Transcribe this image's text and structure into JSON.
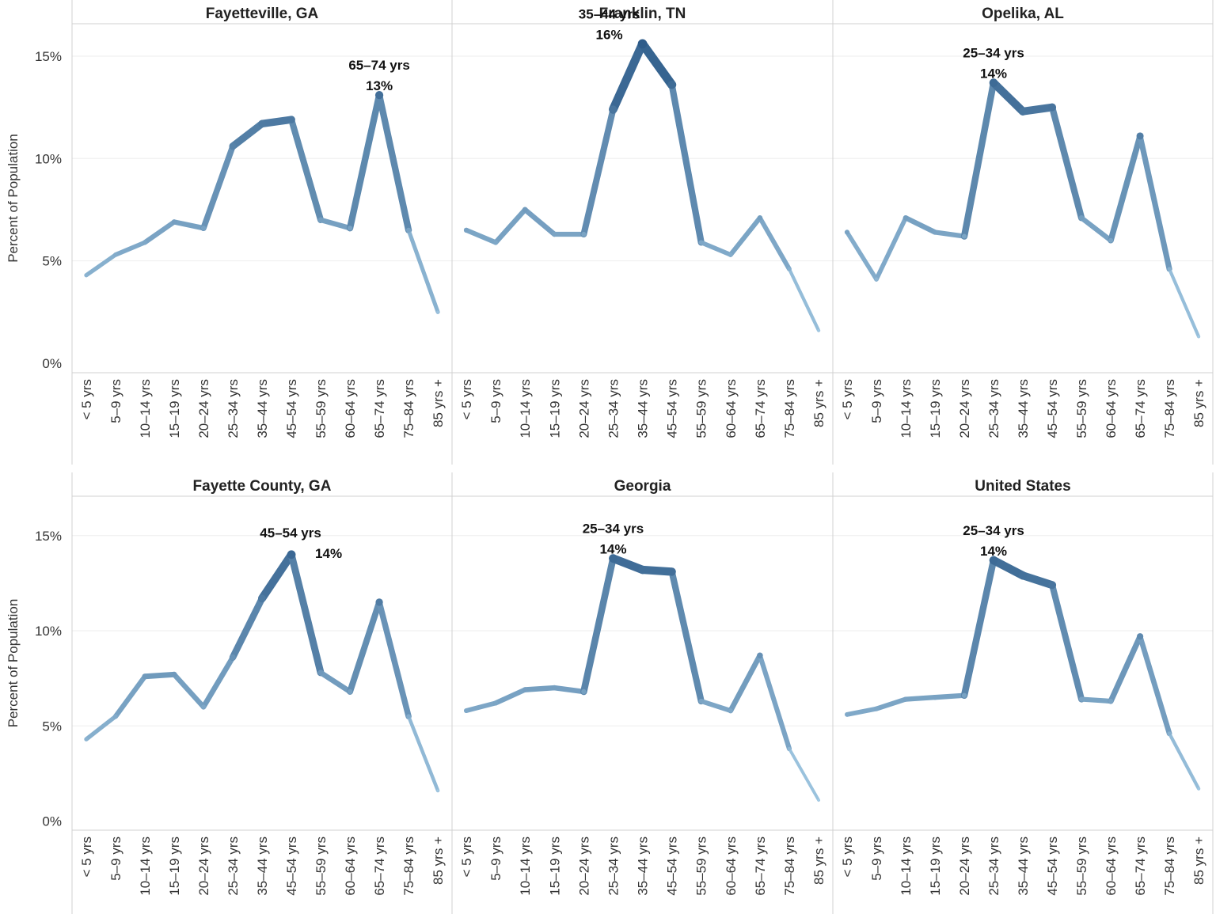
{
  "chart_data": {
    "type": "line",
    "ylabel": "Percent of Population",
    "ylim": [
      0,
      17
    ],
    "yticks": [
      {
        "value": 0,
        "label": "0%"
      },
      {
        "value": 5,
        "label": "5%"
      },
      {
        "value": 10,
        "label": "10%"
      },
      {
        "value": 15,
        "label": "15%"
      }
    ],
    "categories": [
      "< 5 yrs",
      "5–9 yrs",
      "10–14 yrs",
      "15–19 yrs",
      "20–24 yrs",
      "25–34 yrs",
      "35–44 yrs",
      "45–54 yrs",
      "55–59 yrs",
      "60–64 yrs",
      "65–74 yrs",
      "75–84 yrs",
      "85 yrs +"
    ],
    "colors": {
      "low": "#a6cde6",
      "high": "#2b5987",
      "grid": "#eeeeee",
      "divider": "#d0d0d0"
    },
    "panels": [
      {
        "title": "Fayetteville, GA",
        "values": [
          4.3,
          5.3,
          5.9,
          6.9,
          6.6,
          10.6,
          11.7,
          11.9,
          7.0,
          6.6,
          13.1,
          6.5,
          2.5
        ],
        "peak": {
          "index": 10,
          "category": "65–74 yrs",
          "label": "13%"
        }
      },
      {
        "title": "Franklin, TN",
        "values": [
          6.5,
          5.9,
          7.5,
          6.3,
          6.3,
          12.4,
          15.6,
          13.6,
          5.9,
          5.3,
          7.1,
          4.6,
          1.6
        ],
        "peak": {
          "index": 6,
          "category": "35–44 yrs",
          "label": "16%"
        }
      },
      {
        "title": "Opelika, AL",
        "values": [
          6.4,
          4.1,
          7.1,
          6.4,
          6.2,
          13.7,
          12.3,
          12.5,
          7.1,
          6.0,
          11.1,
          4.6,
          1.3
        ],
        "peak": {
          "index": 5,
          "category": "25–34 yrs",
          "label": "14%"
        }
      },
      {
        "title": "Fayette County, GA",
        "values": [
          4.3,
          5.5,
          7.6,
          7.7,
          6.0,
          8.6,
          11.7,
          14.0,
          7.8,
          6.8,
          11.5,
          5.5,
          1.6
        ],
        "peak": {
          "index": 7,
          "category": "45–54 yrs",
          "label": "14%"
        }
      },
      {
        "title": "Georgia",
        "values": [
          5.8,
          6.2,
          6.9,
          7.0,
          6.8,
          13.8,
          13.2,
          13.1,
          6.3,
          5.8,
          8.7,
          3.8,
          1.1
        ],
        "peak": {
          "index": 5,
          "category": "25–34 yrs",
          "label": "14%"
        }
      },
      {
        "title": "United States",
        "values": [
          5.6,
          5.9,
          6.4,
          6.5,
          6.6,
          13.7,
          12.9,
          12.4,
          6.4,
          6.3,
          9.7,
          4.6,
          1.7
        ],
        "peak": {
          "index": 5,
          "category": "25–34 yrs",
          "label": "14%"
        }
      }
    ]
  }
}
